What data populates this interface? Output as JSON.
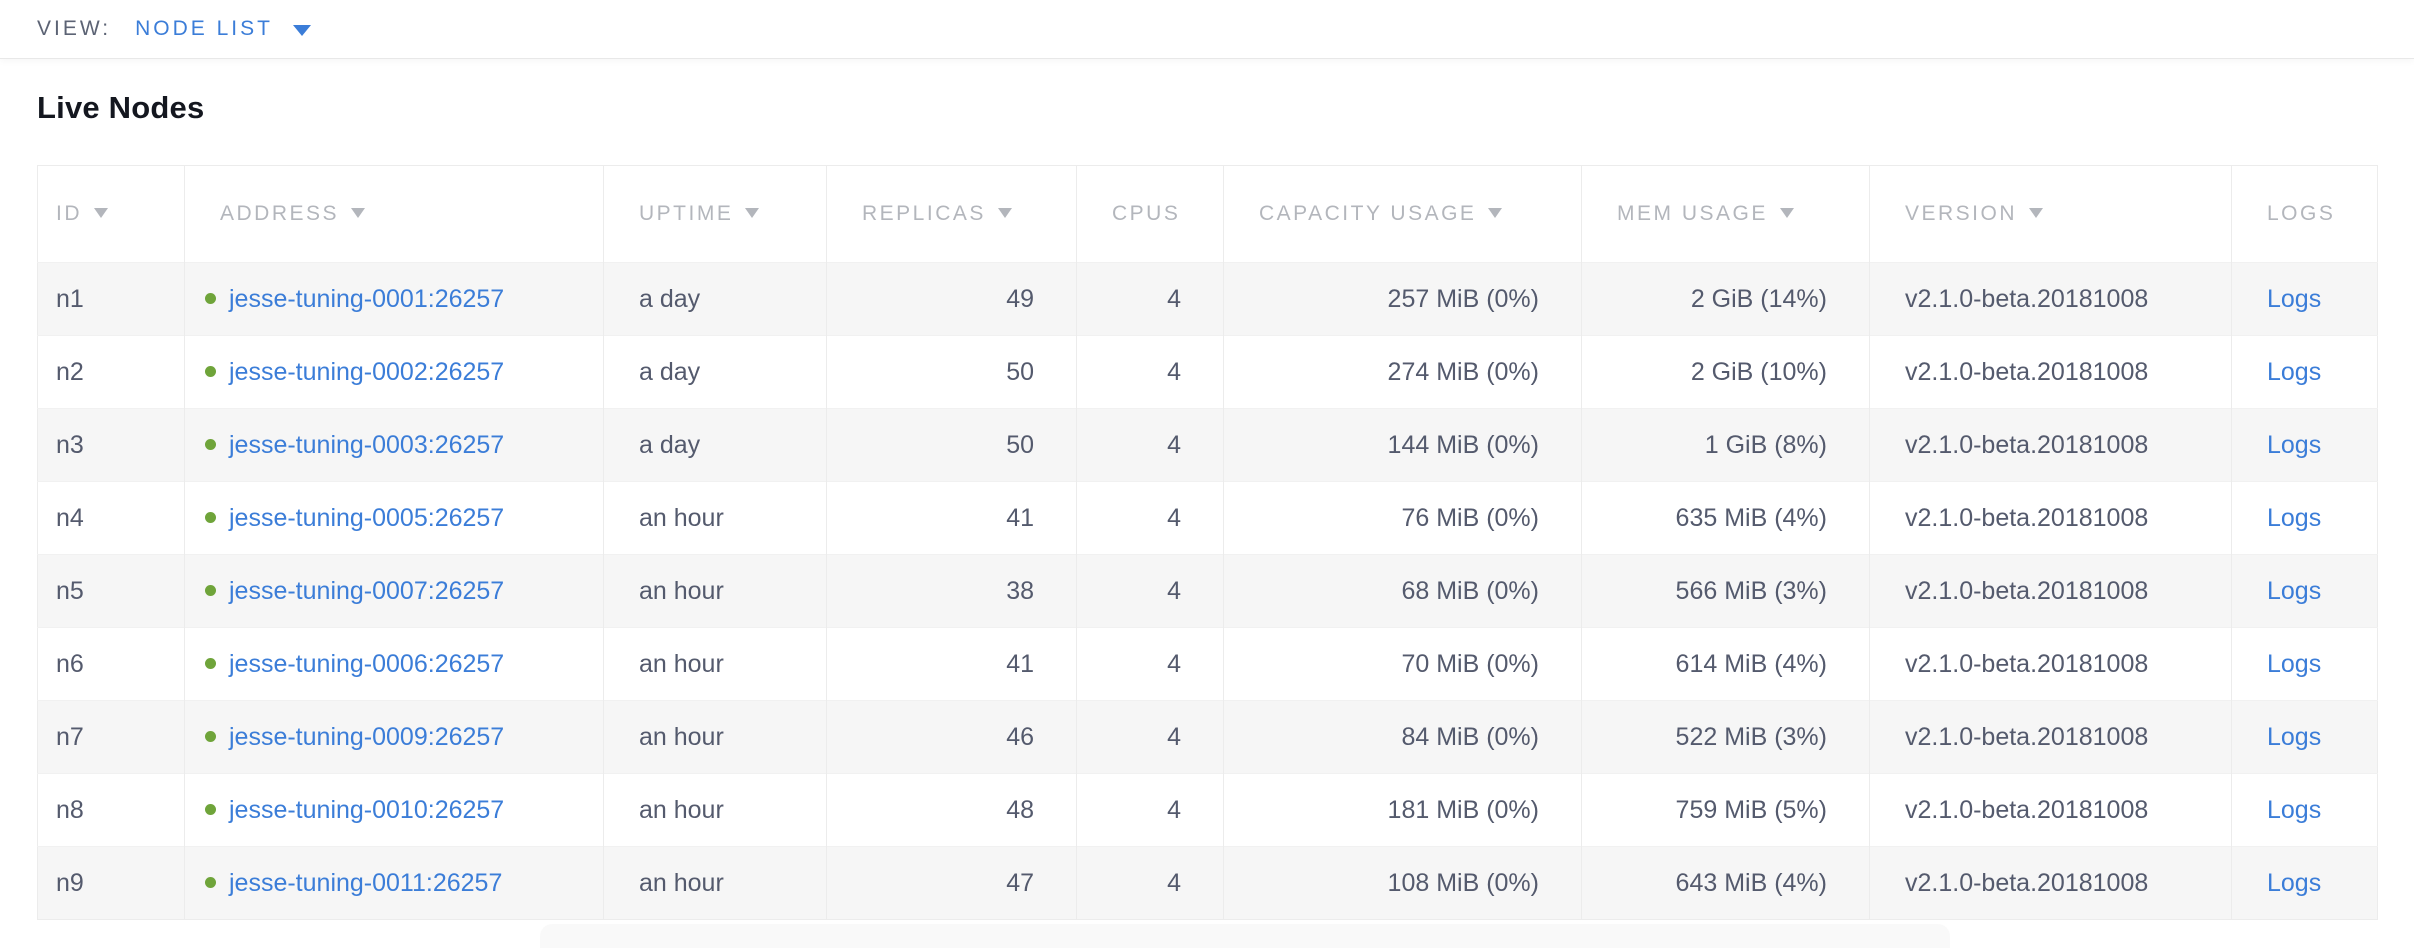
{
  "view_bar": {
    "label": "VIEW:",
    "selected": "NODE LIST"
  },
  "page": {
    "title": "Live Nodes"
  },
  "table": {
    "columns": [
      {
        "label": "ID",
        "sortable": true,
        "align": "left"
      },
      {
        "label": "ADDRESS",
        "sortable": true,
        "align": "left"
      },
      {
        "label": "UPTIME",
        "sortable": true,
        "align": "left"
      },
      {
        "label": "REPLICAS",
        "sortable": true,
        "align": "right"
      },
      {
        "label": "CPUS",
        "sortable": false,
        "align": "right"
      },
      {
        "label": "CAPACITY USAGE",
        "sortable": true,
        "align": "right"
      },
      {
        "label": "MEM USAGE",
        "sortable": true,
        "align": "right"
      },
      {
        "label": "VERSION",
        "sortable": true,
        "align": "left"
      },
      {
        "label": "LOGS",
        "sortable": false,
        "align": "left"
      }
    ],
    "rows": [
      {
        "id": "n1",
        "status": "live",
        "address": "jesse-tuning-0001:26257",
        "uptime": "a day",
        "replicas": "49",
        "cpus": "4",
        "capacity_usage": "257 MiB (0%)",
        "mem_usage": "2 GiB (14%)",
        "version": "v2.1.0-beta.20181008",
        "logs": "Logs"
      },
      {
        "id": "n2",
        "status": "live",
        "address": "jesse-tuning-0002:26257",
        "uptime": "a day",
        "replicas": "50",
        "cpus": "4",
        "capacity_usage": "274 MiB (0%)",
        "mem_usage": "2 GiB (10%)",
        "version": "v2.1.0-beta.20181008",
        "logs": "Logs"
      },
      {
        "id": "n3",
        "status": "live",
        "address": "jesse-tuning-0003:26257",
        "uptime": "a day",
        "replicas": "50",
        "cpus": "4",
        "capacity_usage": "144 MiB (0%)",
        "mem_usage": "1 GiB (8%)",
        "version": "v2.1.0-beta.20181008",
        "logs": "Logs"
      },
      {
        "id": "n4",
        "status": "live",
        "address": "jesse-tuning-0005:26257",
        "uptime": "an hour",
        "replicas": "41",
        "cpus": "4",
        "capacity_usage": "76 MiB (0%)",
        "mem_usage": "635 MiB (4%)",
        "version": "v2.1.0-beta.20181008",
        "logs": "Logs"
      },
      {
        "id": "n5",
        "status": "live",
        "address": "jesse-tuning-0007:26257",
        "uptime": "an hour",
        "replicas": "38",
        "cpus": "4",
        "capacity_usage": "68 MiB (0%)",
        "mem_usage": "566 MiB (3%)",
        "version": "v2.1.0-beta.20181008",
        "logs": "Logs"
      },
      {
        "id": "n6",
        "status": "live",
        "address": "jesse-tuning-0006:26257",
        "uptime": "an hour",
        "replicas": "41",
        "cpus": "4",
        "capacity_usage": "70 MiB (0%)",
        "mem_usage": "614 MiB (4%)",
        "version": "v2.1.0-beta.20181008",
        "logs": "Logs"
      },
      {
        "id": "n7",
        "status": "live",
        "address": "jesse-tuning-0009:26257",
        "uptime": "an hour",
        "replicas": "46",
        "cpus": "4",
        "capacity_usage": "84 MiB (0%)",
        "mem_usage": "522 MiB (3%)",
        "version": "v2.1.0-beta.20181008",
        "logs": "Logs"
      },
      {
        "id": "n8",
        "status": "live",
        "address": "jesse-tuning-0010:26257",
        "uptime": "an hour",
        "replicas": "48",
        "cpus": "4",
        "capacity_usage": "181 MiB (0%)",
        "mem_usage": "759 MiB (5%)",
        "version": "v2.1.0-beta.20181008",
        "logs": "Logs"
      },
      {
        "id": "n9",
        "status": "live",
        "address": "jesse-tuning-0011:26257",
        "uptime": "an hour",
        "replicas": "47",
        "cpus": "4",
        "capacity_usage": "108 MiB (0%)",
        "mem_usage": "643 MiB (4%)",
        "version": "v2.1.0-beta.20181008",
        "logs": "Logs"
      }
    ]
  },
  "colors": {
    "accent_blue": "#3b7dd8",
    "live_green": "#6fa43a",
    "header_gray": "#b3b6bc",
    "body_text": "#545a6d",
    "row_stripe": "#f6f6f6",
    "border": "#ececec"
  }
}
